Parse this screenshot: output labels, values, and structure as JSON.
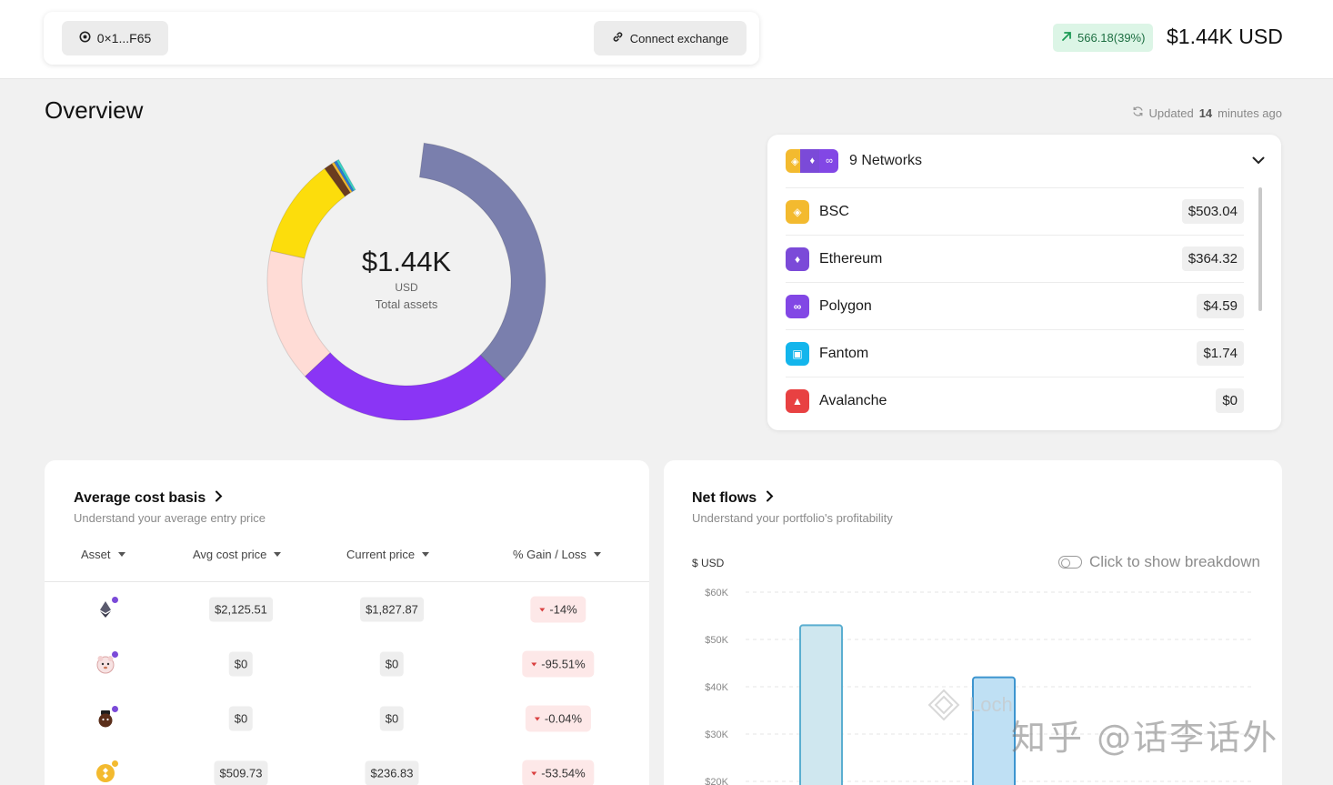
{
  "header": {
    "wallet_label": "0×1...F65",
    "connect_label": "Connect exchange",
    "gain_text": "566.18(39%)",
    "total_text": "$1.44K USD",
    "colors": {
      "gain_bg": "#dcf5e6",
      "gain_fg": "#1d6f42"
    }
  },
  "overview": {
    "title": "Overview",
    "updated_prefix": "Updated",
    "updated_value": "14",
    "updated_suffix": "minutes ago",
    "donut": {
      "value": "$1.44K",
      "unit": "USD",
      "label": "Total assets",
      "segments": [
        {
          "name": "slice-1",
          "fraction": 0.355,
          "color": "#7a7fad"
        },
        {
          "name": "slice-2",
          "fraction": 0.255,
          "color": "#8a35f5"
        },
        {
          "name": "slice-3",
          "fraction": 0.155,
          "color": "#ffdcd6"
        },
        {
          "name": "slice-4",
          "fraction": 0.115,
          "color": "#fcdd0c"
        },
        {
          "name": "slice-5",
          "fraction": 0.01,
          "color": "#6b3d1f"
        },
        {
          "name": "slice-6",
          "fraction": 0.003,
          "color": "#f3ba2f"
        },
        {
          "name": "slice-7",
          "fraction": 0.003,
          "color": "#2a7ad8"
        },
        {
          "name": "slice-8",
          "fraction": 0.003,
          "color": "#3ad1c4"
        }
      ]
    }
  },
  "networks": {
    "title": "9 Networks",
    "items": [
      {
        "name": "BSC",
        "value": "$503.04",
        "color": "#f3ba2f",
        "icon": "bsc-icon",
        "glyph": "◈"
      },
      {
        "name": "Ethereum",
        "value": "$364.32",
        "color": "#7b4ad8",
        "icon": "ethereum-icon",
        "glyph": "♦"
      },
      {
        "name": "Polygon",
        "value": "$4.59",
        "color": "#8247e5",
        "icon": "polygon-icon",
        "glyph": "∞"
      },
      {
        "name": "Fantom",
        "value": "$1.74",
        "color": "#13b5ec",
        "icon": "fantom-icon",
        "glyph": "▣"
      },
      {
        "name": "Avalanche",
        "value": "$0",
        "color": "#e84142",
        "icon": "avalanche-icon",
        "glyph": "▲"
      }
    ]
  },
  "cost_basis": {
    "title": "Average cost basis",
    "subtitle": "Understand your average entry price",
    "columns": [
      "Asset",
      "Avg cost price",
      "Current price",
      "% Gain / Loss"
    ],
    "rows": [
      {
        "asset_icon": "ethereum-token-icon",
        "avg": "$2,125.51",
        "current": "$1,827.87",
        "gain": "-14%"
      },
      {
        "asset_icon": "bear-token-icon",
        "avg": "$0",
        "current": "$0",
        "gain": "-95.51%"
      },
      {
        "asset_icon": "dark-token-icon",
        "avg": "$0",
        "current": "$0",
        "gain": "-0.04%"
      },
      {
        "asset_icon": "bnb-token-icon",
        "avg": "$509.73",
        "current": "$236.83",
        "gain": "-53.54%"
      }
    ]
  },
  "net_flows": {
    "title": "Net flows",
    "subtitle": "Understand your portfolio's profitability",
    "usd_label": "$ USD",
    "toggle_label": "Click to show breakdown",
    "watermark_brand": "Loch"
  },
  "chart_data": {
    "type": "bar",
    "ylabel": "$ USD",
    "ytick_labels": [
      "$60K",
      "$50K",
      "$40K",
      "$30K",
      "$20K"
    ],
    "yticks": [
      60000,
      50000,
      40000,
      30000,
      20000
    ],
    "ylim": [
      0,
      62000
    ],
    "series": [
      {
        "values": [
          53000,
          42000
        ],
        "colors": [
          "#cfe7ef",
          "#bfe0f4"
        ],
        "strokes": [
          "#5aaed0",
          "#3d95cf"
        ]
      }
    ],
    "grid": true
  },
  "watermark_text": "知乎 @话李话外"
}
